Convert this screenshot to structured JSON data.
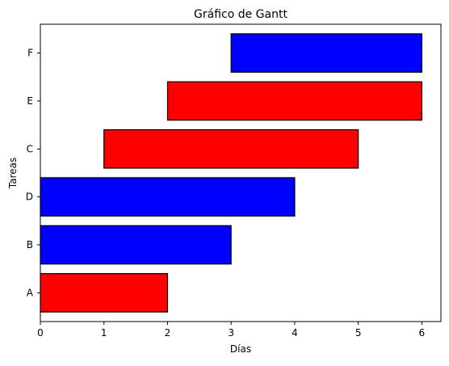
{
  "chart_data": {
    "type": "bar",
    "orientation": "horizontal",
    "title": "Gráfico de Gantt",
    "xlabel": "Días",
    "ylabel": "Tareas",
    "xlim": [
      0,
      6.3
    ],
    "xticks": [
      0,
      1,
      2,
      3,
      4,
      5,
      6
    ],
    "grid": false,
    "legend": "none",
    "tasks": [
      {
        "name": "A",
        "start": 0,
        "end": 2,
        "color": "#ff0000"
      },
      {
        "name": "B",
        "start": 0,
        "end": 3,
        "color": "#0000ff"
      },
      {
        "name": "D",
        "start": 0,
        "end": 4,
        "color": "#0000ff"
      },
      {
        "name": "C",
        "start": 1,
        "end": 5,
        "color": "#ff0000"
      },
      {
        "name": "E",
        "start": 2,
        "end": 6,
        "color": "#ff0000"
      },
      {
        "name": "F",
        "start": 3,
        "end": 6,
        "color": "#0000ff"
      }
    ]
  }
}
